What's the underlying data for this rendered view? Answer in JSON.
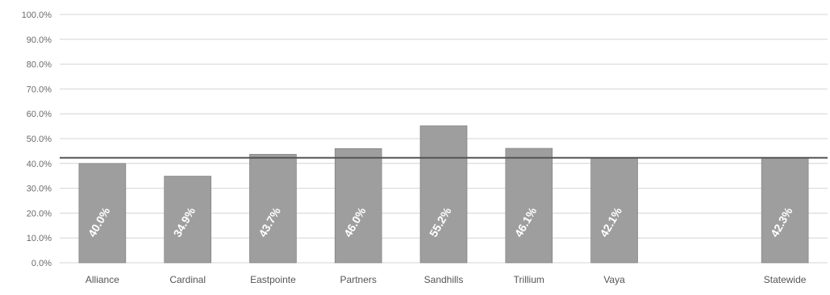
{
  "chart_data": {
    "type": "bar",
    "categories": [
      "Alliance",
      "Cardinal",
      "Eastpointe",
      "Partners",
      "Sandhills",
      "Trillium",
      "Vaya",
      "",
      "Statewide"
    ],
    "values": [
      40.0,
      34.9,
      43.7,
      46.0,
      55.2,
      46.1,
      42.1,
      null,
      42.3
    ],
    "data_labels": [
      "40.0%",
      "34.9%",
      "43.7%",
      "46.0%",
      "55.2%",
      "46.1%",
      "42.1%",
      "",
      "42.3%"
    ],
    "ylim": [
      0,
      100
    ],
    "yticks": [
      "0.0%",
      "10.0%",
      "20.0%",
      "30.0%",
      "40.0%",
      "50.0%",
      "60.0%",
      "70.0%",
      "80.0%",
      "90.0%",
      "100.0%"
    ],
    "reference_line": 42.3,
    "grid": true,
    "bar_color": "#9e9e9e",
    "line_color": "#555555",
    "grid_color": "#d4d4d4",
    "title": "",
    "xlabel": "",
    "ylabel": ""
  }
}
